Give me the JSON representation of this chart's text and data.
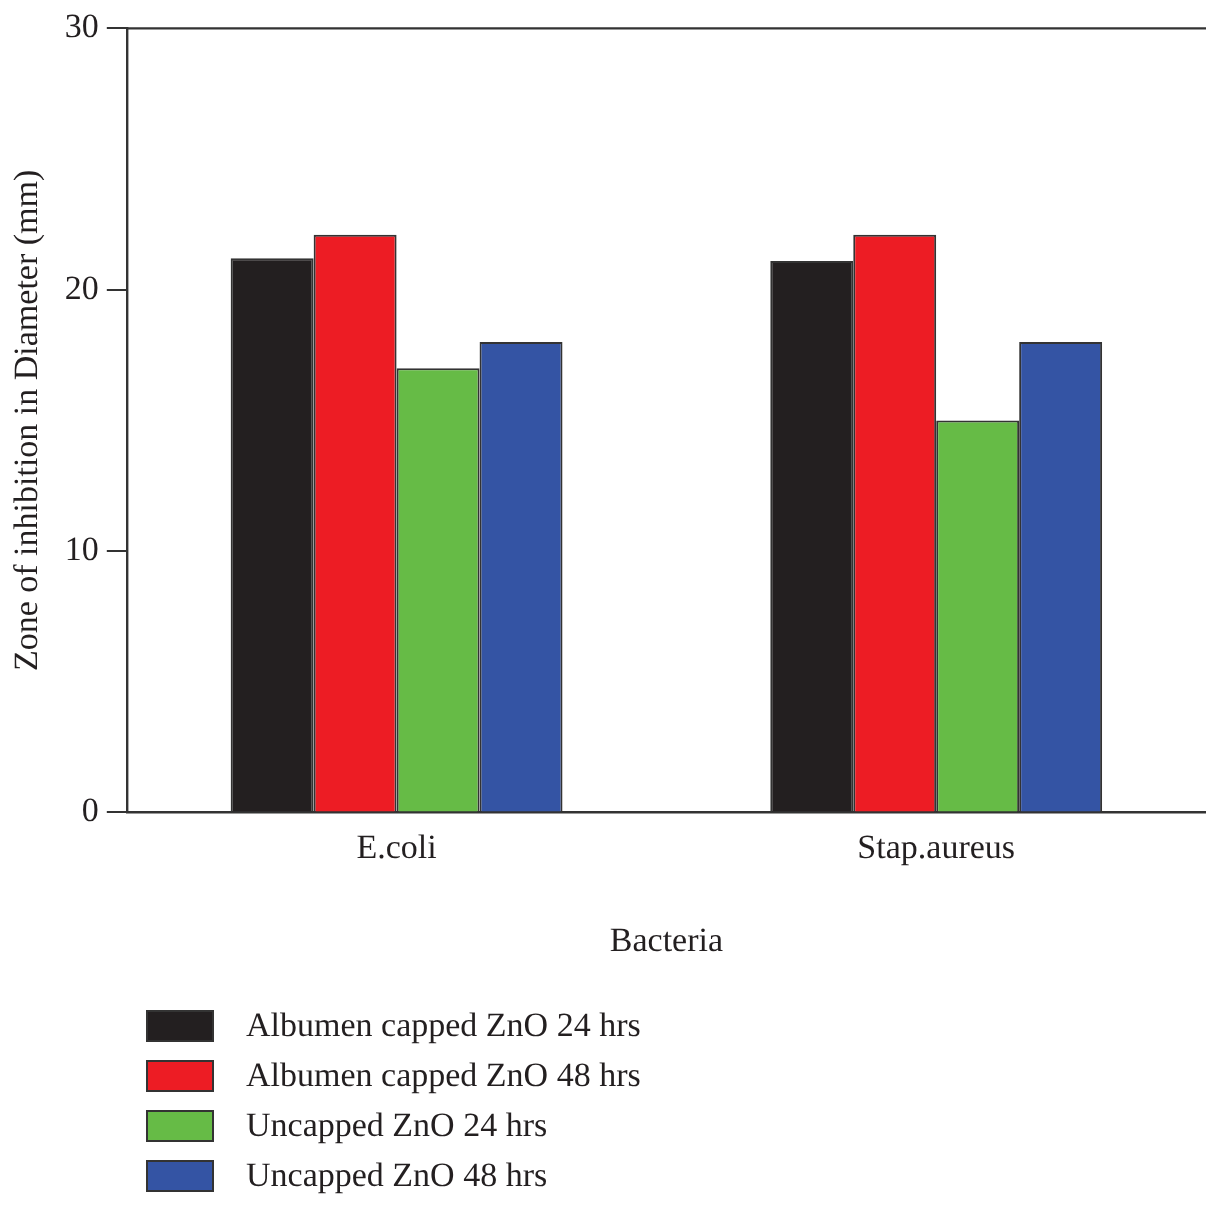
{
  "chart_data": {
    "type": "bar",
    "xlabel": "Bacteria",
    "ylabel": "Zone of inhibition in Diameter (mm)",
    "categories": [
      "E.coli",
      "Stap.aureus"
    ],
    "series": [
      {
        "name": "Albumen capped ZnO 24 hrs",
        "color": "#231f20",
        "values": [
          21.2,
          21.1
        ]
      },
      {
        "name": "Albumen capped ZnO 48 hrs",
        "color": "#ed1c24",
        "values": [
          22.1,
          22.1
        ]
      },
      {
        "name": "Uncapped ZnO 24 hrs",
        "color": "#66bb46",
        "values": [
          17.0,
          15.0
        ]
      },
      {
        "name": "Uncapped ZnO 48 hrs",
        "color": "#3454a4",
        "values": [
          18.0,
          18.0
        ]
      }
    ],
    "ylim": [
      0,
      30
    ],
    "yticks": [
      0,
      10,
      20,
      30
    ],
    "grid": false,
    "legend": "bottom"
  }
}
